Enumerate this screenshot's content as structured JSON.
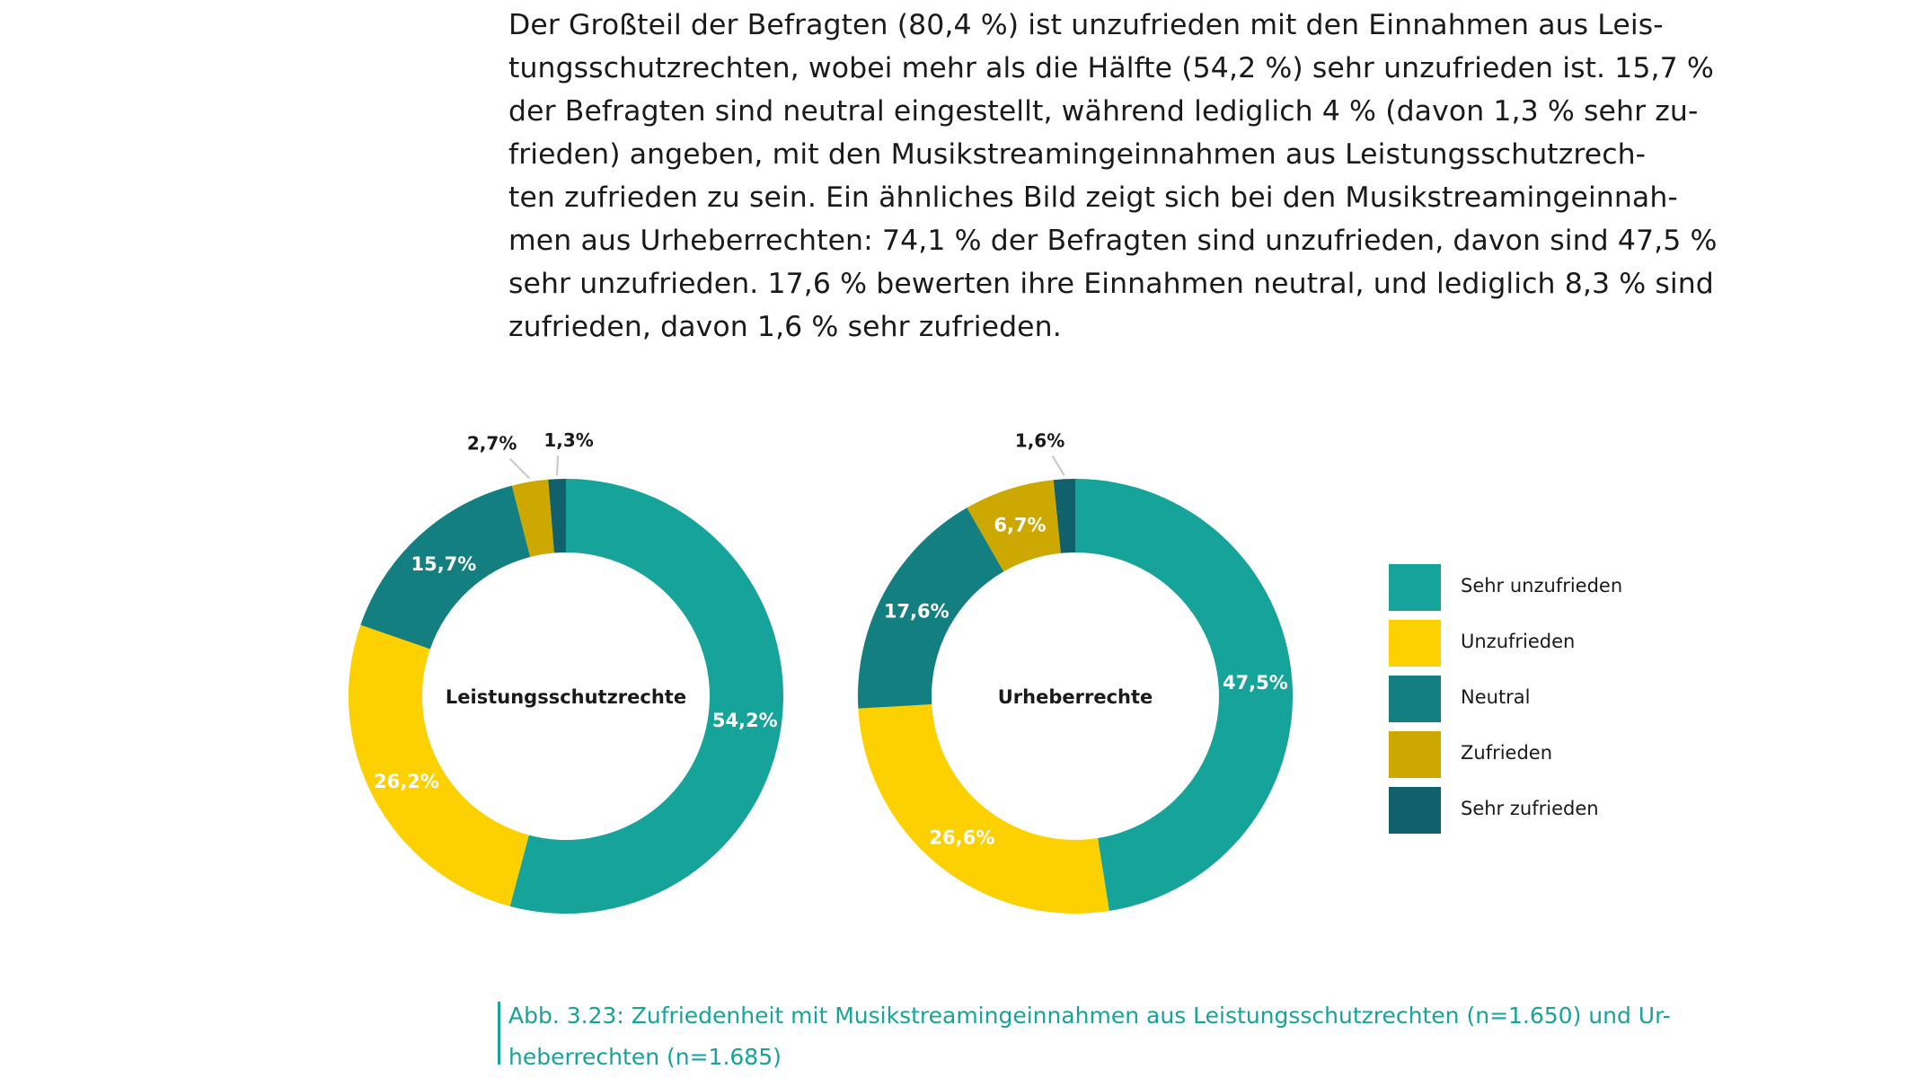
{
  "text": {
    "lines": [
      "Der Großteil der Befragten (80,4 %) ist unzufrieden mit den Einnahmen aus Leis-",
      "tungsschutzrechten, wobei mehr als die Hälfte (54,2 %) sehr unzufrieden ist. 15,7 %",
      "der Befragten sind neutral eingestellt, während lediglich 4 % (davon 1,3 % sehr zu-",
      "frieden) angeben, mit den Musikstreamingeinnahmen aus Leistungsschutzrech-",
      "ten zufrieden zu sein. Ein ähnliches Bild zeigt sich bei den Musikstreamingeinnah-",
      "men aus Urheberrechten: 74,1 % der Befragten sind unzufrieden, davon sind 47,5 %",
      "sehr unzufrieden. 17,6 % bewerten ihre Einnahmen neutral, und lediglich 8,3 % sind",
      "zufrieden, davon 1,6 % sehr zufrieden."
    ]
  },
  "caption": {
    "lines": [
      "Abb. 3.23: Zufriedenheit mit Musikstreamingeinnahmen aus Leistungsschutzrechten (n=1.650) und Ur-",
      "heberrechten (n=1.685)"
    ]
  },
  "colors": {
    "sehr_unzufrieden": "#15a39a",
    "unzufrieden": "#fdd000",
    "neutral": "#147f80",
    "zufrieden": "#cca800",
    "sehr_zufrieden": "#10616b"
  },
  "legend": [
    {
      "label": "Sehr unzufrieden",
      "color": "#15a39a"
    },
    {
      "label": "Unzufrieden",
      "color": "#fdd000"
    },
    {
      "label": "Neutral",
      "color": "#147f80"
    },
    {
      "label": "Zufrieden",
      "color": "#cca800"
    },
    {
      "label": "Sehr zufrieden",
      "color": "#10616b"
    }
  ],
  "chart_data": [
    {
      "type": "pie",
      "style": "donut",
      "center_label": "Leistungsschutzrechte",
      "categories": [
        "Sehr unzufrieden",
        "Unzufrieden",
        "Neutral",
        "Zufrieden",
        "Sehr zufrieden"
      ],
      "values": [
        54.2,
        26.2,
        15.7,
        2.7,
        1.3
      ],
      "labels": [
        "54,2%",
        "26,2%",
        "15,7%",
        "2,7%",
        "1,3%"
      ],
      "colors": [
        "#15a39a",
        "#fdd000",
        "#147f80",
        "#cca800",
        "#10616b"
      ]
    },
    {
      "type": "pie",
      "style": "donut",
      "center_label": "Urheberrechte",
      "categories": [
        "Sehr unzufrieden",
        "Unzufrieden",
        "Neutral",
        "Zufrieden",
        "Sehr zufrieden"
      ],
      "values": [
        47.5,
        26.6,
        17.6,
        6.7,
        1.6
      ],
      "labels": [
        "47,5%",
        "26,6%",
        "17,6%",
        "6,7%",
        "1,6%"
      ],
      "colors": [
        "#15a39a",
        "#fdd000",
        "#147f80",
        "#cca800",
        "#10616b"
      ]
    }
  ]
}
